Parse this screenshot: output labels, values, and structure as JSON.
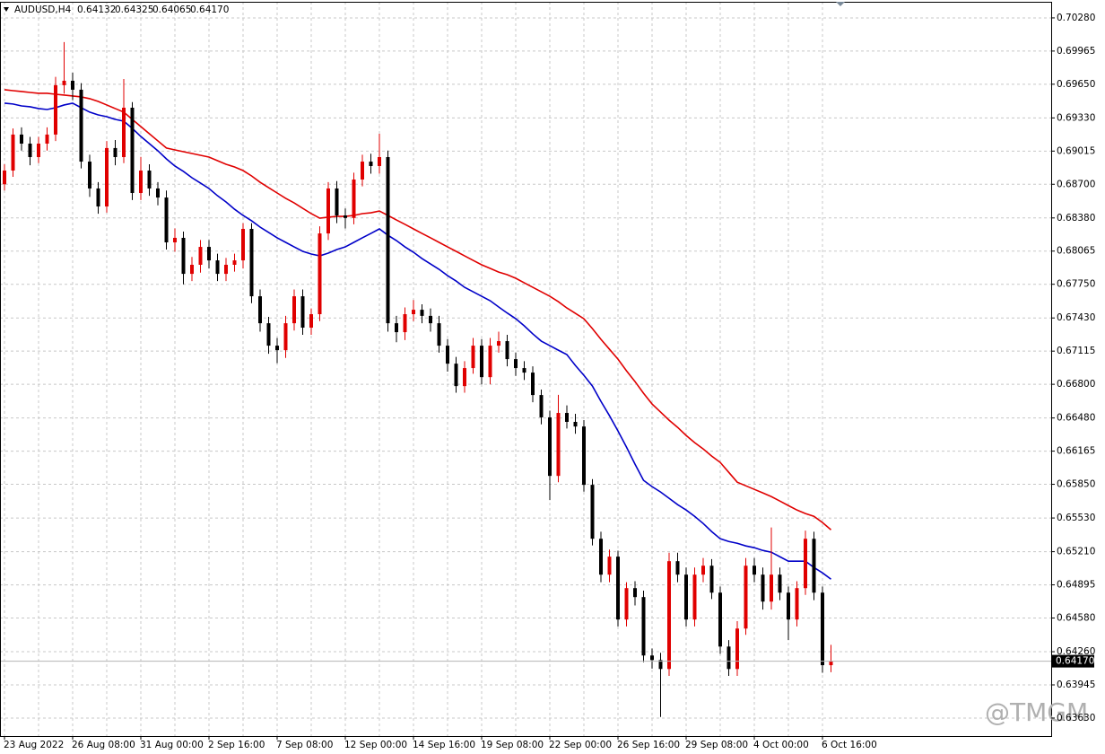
{
  "chart_data": {
    "type": "candlestick",
    "title": "AUDUSD,H4",
    "ohlc_labels": [
      "0.64132",
      "0.64325",
      "0.64065",
      "0.64170"
    ],
    "watermark": "@TMGM",
    "up_color": "#e00000",
    "down_color": "#000000",
    "grid": true,
    "ylim": [
      0.63459,
      0.70433
    ],
    "yticks": [
      {
        "value": 0.7028,
        "label": "0.70280"
      },
      {
        "value": 0.69965,
        "label": "0.69965"
      },
      {
        "value": 0.6965,
        "label": "0.69650"
      },
      {
        "value": 0.6933,
        "label": "0.69330"
      },
      {
        "value": 0.69015,
        "label": "0.69015"
      },
      {
        "value": 0.687,
        "label": "0.68700"
      },
      {
        "value": 0.6838,
        "label": "0.68380"
      },
      {
        "value": 0.68065,
        "label": "0.68065"
      },
      {
        "value": 0.6775,
        "label": "0.67750"
      },
      {
        "value": 0.6743,
        "label": "0.67430"
      },
      {
        "value": 0.67115,
        "label": "0.67115"
      },
      {
        "value": 0.668,
        "label": "0.66800"
      },
      {
        "value": 0.6648,
        "label": "0.66480"
      },
      {
        "value": 0.66165,
        "label": "0.66165"
      },
      {
        "value": 0.6585,
        "label": "0.65850"
      },
      {
        "value": 0.6553,
        "label": "0.65530"
      },
      {
        "value": 0.6521,
        "label": "0.65210"
      },
      {
        "value": 0.64895,
        "label": "0.64895"
      },
      {
        "value": 0.6458,
        "label": "0.64580"
      },
      {
        "value": 0.6426,
        "label": "0.64260"
      },
      {
        "value": 0.63945,
        "label": "0.63945"
      },
      {
        "value": 0.6363,
        "label": "0.63630"
      }
    ],
    "categories": [
      "23 Aug 2022",
      null,
      null,
      null,
      null,
      null,
      null,
      null,
      "26 Aug 08:00",
      null,
      null,
      null,
      null,
      null,
      null,
      null,
      "31 Aug 00:00",
      null,
      null,
      null,
      null,
      null,
      null,
      null,
      "2 Sep 16:00",
      null,
      null,
      null,
      null,
      null,
      null,
      null,
      "7 Sep 08:00",
      null,
      null,
      null,
      null,
      null,
      null,
      null,
      "12 Sep 00:00",
      null,
      null,
      null,
      null,
      null,
      null,
      null,
      "14 Sep 16:00",
      null,
      null,
      null,
      null,
      null,
      null,
      null,
      "19 Sep 08:00",
      null,
      null,
      null,
      null,
      null,
      null,
      null,
      "22 Sep 00:00",
      null,
      null,
      null,
      null,
      null,
      null,
      null,
      "26 Sep 16:00",
      null,
      null,
      null,
      null,
      null,
      null,
      null,
      "29 Sep 08:00",
      null,
      null,
      null,
      null,
      null,
      null,
      null,
      "4 Oct 00:00",
      null,
      null,
      null,
      null,
      null,
      null,
      null,
      "6 Oct 16:00",
      null
    ],
    "open": [
      0.687,
      0.6883,
      0.69172,
      0.69086,
      0.68958,
      0.69086,
      0.69172,
      0.69641,
      0.69683,
      0.69598,
      0.68915,
      0.6866,
      0.68489,
      0.69044,
      0.68958,
      0.69427,
      0.68617,
      0.6883,
      0.6866,
      0.68574,
      0.68148,
      0.68191,
      0.67849,
      0.67935,
      0.68105,
      0.67977,
      0.67849,
      0.67935,
      0.67977,
      0.68276,
      0.67636,
      0.6738,
      0.67167,
      0.67124,
      0.6738,
      0.67636,
      0.67338,
      0.67466,
      0.68233,
      0.6866,
      0.68404,
      0.6838,
      0.68745,
      0.68915,
      0.68873,
      0.68958,
      0.6738,
      0.67295,
      0.67466,
      0.67508,
      0.6745,
      0.6738,
      0.67167,
      0.66996,
      0.66783,
      0.66954,
      0.67167,
      0.66868,
      0.67167,
      0.6721,
      0.67039,
      0.66954,
      0.66911,
      0.66698,
      0.66486,
      0.6593,
      0.66528,
      0.66443,
      0.66399,
      0.65845,
      0.65333,
      0.64992,
      0.65163,
      0.64566,
      0.64864,
      0.64779,
      0.64224,
      0.64181,
      0.64096,
      0.6512,
      0.64992,
      0.64566,
      0.64992,
      0.65077,
      0.64821,
      0.64309,
      0.64096,
      0.6448,
      0.65077,
      0.64992,
      0.64736,
      0.64992,
      0.64821,
      0.64566,
      0.64864,
      0.65333,
      0.64821,
      0.64132
    ],
    "high": [
      0.6889,
      0.6923,
      0.6924,
      0.6915,
      0.6915,
      0.6924,
      0.6972,
      0.7005,
      0.6976,
      0.6966,
      0.6898,
      0.6872,
      0.6911,
      0.6912,
      0.697,
      0.6948,
      0.6896,
      0.6889,
      0.6872,
      0.6864,
      0.6828,
      0.6825,
      0.6801,
      0.6817,
      0.6817,
      0.6804,
      0.68,
      0.6804,
      0.6833,
      0.6833,
      0.677,
      0.6744,
      0.6724,
      0.6745,
      0.677,
      0.677,
      0.6752,
      0.683,
      0.6872,
      0.6873,
      0.6847,
      0.6881,
      0.6898,
      0.6899,
      0.6918,
      0.6902,
      0.6745,
      0.6753,
      0.676,
      0.6756,
      0.6752,
      0.6745,
      0.6723,
      0.6706,
      0.6702,
      0.6724,
      0.6723,
      0.6724,
      0.673,
      0.6727,
      0.671,
      0.6702,
      0.6697,
      0.6675,
      0.6655,
      0.667,
      0.666,
      0.6652,
      0.6646,
      0.659,
      0.654,
      0.6523,
      0.6522,
      0.6492,
      0.6493,
      0.6484,
      0.6429,
      0.6425,
      0.652,
      0.652,
      0.6506,
      0.6506,
      0.6515,
      0.6514,
      0.6488,
      0.6437,
      0.6455,
      0.6515,
      0.6515,
      0.6506,
      0.6544,
      0.6506,
      0.6488,
      0.6493,
      0.6541,
      0.654,
      0.6488,
      0.64325
    ],
    "low": [
      0.6864,
      0.6877,
      0.6902,
      0.6888,
      0.689,
      0.6902,
      0.6911,
      0.6956,
      0.695,
      0.6885,
      0.6858,
      0.6842,
      0.6843,
      0.6888,
      0.689,
      0.6855,
      0.6855,
      0.6859,
      0.685,
      0.6808,
      0.6806,
      0.6775,
      0.6778,
      0.6786,
      0.679,
      0.6778,
      0.6778,
      0.6787,
      0.679,
      0.6757,
      0.673,
      0.6709,
      0.67,
      0.6705,
      0.6731,
      0.6727,
      0.6727,
      0.674,
      0.6817,
      0.6833,
      0.6828,
      0.6832,
      0.6868,
      0.688,
      0.688,
      0.673,
      0.672,
      0.6722,
      0.674,
      0.6738,
      0.673,
      0.671,
      0.6692,
      0.6672,
      0.6672,
      0.669,
      0.668,
      0.668,
      0.671,
      0.6697,
      0.6688,
      0.6684,
      0.6663,
      0.6642,
      0.657,
      0.6587,
      0.6638,
      0.6633,
      0.6578,
      0.6527,
      0.6492,
      0.6492,
      0.645,
      0.645,
      0.647,
      0.6416,
      0.641,
      0.6364,
      0.6403,
      0.6492,
      0.645,
      0.645,
      0.6492,
      0.6476,
      0.6424,
      0.6403,
      0.6403,
      0.6442,
      0.6492,
      0.6466,
      0.6466,
      0.6475,
      0.6437,
      0.645,
      0.648,
      0.6475,
      0.6406,
      0.64065
    ],
    "close": [
      0.6883,
      0.69172,
      0.69086,
      0.68958,
      0.69086,
      0.69172,
      0.69641,
      0.69683,
      0.69598,
      0.68915,
      0.6866,
      0.68489,
      0.69044,
      0.68958,
      0.69427,
      0.68617,
      0.6883,
      0.6866,
      0.68574,
      0.68148,
      0.68191,
      0.67849,
      0.67935,
      0.68105,
      0.67977,
      0.67849,
      0.67935,
      0.67977,
      0.68276,
      0.67636,
      0.6738,
      0.67167,
      0.67124,
      0.6738,
      0.67636,
      0.67338,
      0.67466,
      0.68233,
      0.6866,
      0.68404,
      0.6838,
      0.68745,
      0.68915,
      0.68873,
      0.68958,
      0.6738,
      0.67295,
      0.67466,
      0.67508,
      0.6745,
      0.6738,
      0.67167,
      0.66996,
      0.66783,
      0.66954,
      0.67167,
      0.66868,
      0.67167,
      0.6721,
      0.67039,
      0.66954,
      0.66911,
      0.66698,
      0.66486,
      0.6593,
      0.66528,
      0.66443,
      0.66399,
      0.65845,
      0.65333,
      0.64992,
      0.65163,
      0.64566,
      0.64864,
      0.64779,
      0.64224,
      0.64181,
      0.64096,
      0.6512,
      0.64992,
      0.64566,
      0.64992,
      0.65077,
      0.64821,
      0.64309,
      0.64096,
      0.6448,
      0.65077,
      0.64992,
      0.64736,
      0.64992,
      0.64821,
      0.64566,
      0.64864,
      0.65333,
      0.64821,
      0.64132,
      0.6417
    ],
    "series": [
      {
        "color": "#e00000",
        "values": [
          0.69598,
          0.69589,
          0.69581,
          0.69572,
          0.69564,
          0.69564,
          0.69555,
          0.69547,
          0.69538,
          0.6953,
          0.69513,
          0.69487,
          0.69453,
          0.69419,
          0.69385,
          0.69316,
          0.69248,
          0.6918,
          0.69112,
          0.69044,
          0.69026,
          0.69009,
          0.68992,
          0.68975,
          0.68958,
          0.68924,
          0.6889,
          0.68864,
          0.6883,
          0.68779,
          0.68719,
          0.68668,
          0.68617,
          0.68566,
          0.68523,
          0.68472,
          0.68421,
          0.68378,
          0.68387,
          0.68395,
          0.68395,
          0.68404,
          0.68421,
          0.68429,
          0.68446,
          0.68404,
          0.68361,
          0.68319,
          0.68276,
          0.68233,
          0.68191,
          0.68148,
          0.68105,
          0.68063,
          0.6802,
          0.67977,
          0.67935,
          0.67901,
          0.67866,
          0.67841,
          0.67807,
          0.67764,
          0.67721,
          0.67679,
          0.67636,
          0.67585,
          0.67525,
          0.67474,
          0.67423,
          0.67329,
          0.67227,
          0.67133,
          0.67039,
          0.66928,
          0.66826,
          0.66715,
          0.66613,
          0.66536,
          0.66459,
          0.66391,
          0.66314,
          0.66246,
          0.66186,
          0.66118,
          0.66058,
          0.65964,
          0.6587,
          0.65836,
          0.65802,
          0.65768,
          0.65733,
          0.65691,
          0.65648,
          0.65606,
          0.65572,
          0.65546,
          0.65487,
          0.65418
        ]
      },
      {
        "color": "#0000c8",
        "values": [
          0.6947,
          0.69462,
          0.69444,
          0.69436,
          0.69419,
          0.6941,
          0.69427,
          0.69453,
          0.6947,
          0.69427,
          0.69385,
          0.69359,
          0.69342,
          0.69316,
          0.69299,
          0.69231,
          0.69154,
          0.69086,
          0.69018,
          0.68941,
          0.68873,
          0.68822,
          0.68762,
          0.68711,
          0.6866,
          0.68591,
          0.68532,
          0.68463,
          0.68404,
          0.68353,
          0.68293,
          0.68242,
          0.68191,
          0.68148,
          0.68105,
          0.68063,
          0.68037,
          0.6802,
          0.68046,
          0.6808,
          0.68105,
          0.68148,
          0.68191,
          0.68233,
          0.68276,
          0.68216,
          0.68165,
          0.68105,
          0.68054,
          0.67994,
          0.67943,
          0.67892,
          0.67832,
          0.67781,
          0.67721,
          0.67679,
          0.67636,
          0.67594,
          0.67534,
          0.67477,
          0.67423,
          0.67355,
          0.67279,
          0.6721,
          0.67167,
          0.67124,
          0.67082,
          0.66979,
          0.66885,
          0.66783,
          0.66638,
          0.66502,
          0.66357,
          0.66203,
          0.66041,
          0.65888,
          0.65828,
          0.65777,
          0.65717,
          0.65657,
          0.65606,
          0.65546,
          0.65478,
          0.65401,
          0.65333,
          0.65307,
          0.6529,
          0.65265,
          0.65248,
          0.65222,
          0.65205,
          0.65162,
          0.6512,
          0.6512,
          0.6512,
          0.6506,
          0.65009,
          0.64949
        ]
      }
    ]
  }
}
